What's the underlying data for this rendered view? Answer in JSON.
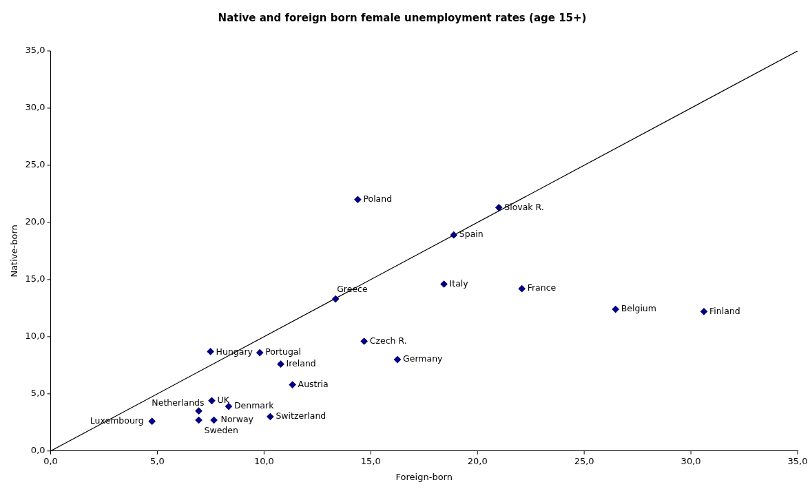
{
  "chart_data": {
    "type": "scatter",
    "title": "Native and foreign born female unemployment rates (age 15+)",
    "xlabel": "Foreign-born",
    "ylabel": "Native-born",
    "xlim": [
      0,
      35
    ],
    "ylim": [
      0,
      35
    ],
    "xticks": [
      {
        "value": 0,
        "label": "0,0"
      },
      {
        "value": 5,
        "label": "5,0"
      },
      {
        "value": 10,
        "label": "10,0"
      },
      {
        "value": 15,
        "label": "15,0"
      },
      {
        "value": 20,
        "label": "20,0"
      },
      {
        "value": 25,
        "label": "25,0"
      },
      {
        "value": 30,
        "label": "30,0"
      },
      {
        "value": 35,
        "label": "35,0"
      }
    ],
    "yticks": [
      {
        "value": 0,
        "label": "0,0"
      },
      {
        "value": 5,
        "label": "5,0"
      },
      {
        "value": 10,
        "label": "10,0"
      },
      {
        "value": 15,
        "label": "15,0"
      },
      {
        "value": 20,
        "label": "20,0"
      },
      {
        "value": 25,
        "label": "25,0"
      },
      {
        "value": 30,
        "label": "30,0"
      },
      {
        "value": 35,
        "label": "35,0"
      }
    ],
    "grid": false,
    "legend": false,
    "marker": "diamond",
    "series": [
      {
        "color": "#000080",
        "x": [
          4.75,
          6.94,
          6.94,
          7.55,
          7.65,
          8.34,
          7.49,
          9.8,
          10.78,
          11.33,
          10.29,
          13.35,
          14.69,
          14.39,
          16.25,
          18.43,
          18.89,
          21.0,
          22.08,
          26.47,
          30.61
        ],
        "values": [
          2.6,
          2.7,
          3.5,
          4.4,
          2.7,
          3.9,
          8.7,
          8.6,
          7.6,
          5.8,
          3.0,
          13.3,
          9.6,
          22.0,
          8.0,
          14.6,
          18.9,
          21.3,
          14.2,
          12.4,
          12.2
        ]
      },
      {
        "type": "line",
        "color": "#000000",
        "marker": "none",
        "x": [
          0,
          35
        ],
        "values": [
          0,
          35
        ]
      }
    ],
    "annotations": [
      {
        "text": "Luxembourg",
        "x": 4.75,
        "y": 2.6
      },
      {
        "text": "Sweden",
        "x": 6.94,
        "y": 2.7
      },
      {
        "text": "Netherlands",
        "x": 6.94,
        "y": 3.5
      },
      {
        "text": "UK",
        "x": 7.55,
        "y": 4.4
      },
      {
        "text": "Norway",
        "x": 7.65,
        "y": 2.7
      },
      {
        "text": "Denmark",
        "x": 8.34,
        "y": 3.9
      },
      {
        "text": "Hungary",
        "x": 7.49,
        "y": 8.7
      },
      {
        "text": "Portugal",
        "x": 9.8,
        "y": 8.6
      },
      {
        "text": "Ireland",
        "x": 10.78,
        "y": 7.6
      },
      {
        "text": "Austria",
        "x": 11.33,
        "y": 5.8
      },
      {
        "text": "Switzerland",
        "x": 10.29,
        "y": 3.0
      },
      {
        "text": "Greece",
        "x": 13.35,
        "y": 13.3
      },
      {
        "text": "Czech R.",
        "x": 14.69,
        "y": 9.6
      },
      {
        "text": "Poland",
        "x": 14.39,
        "y": 22.0
      },
      {
        "text": "Germany",
        "x": 16.25,
        "y": 8.0
      },
      {
        "text": "Italy",
        "x": 18.43,
        "y": 14.6
      },
      {
        "text": "Spain",
        "x": 18.89,
        "y": 18.9
      },
      {
        "text": "Slovak R.",
        "x": 21.0,
        "y": 21.3
      },
      {
        "text": "France",
        "x": 22.08,
        "y": 14.2
      },
      {
        "text": "Belgium",
        "x": 26.47,
        "y": 12.4
      },
      {
        "text": "Finland",
        "x": 30.61,
        "y": 12.2
      }
    ]
  }
}
